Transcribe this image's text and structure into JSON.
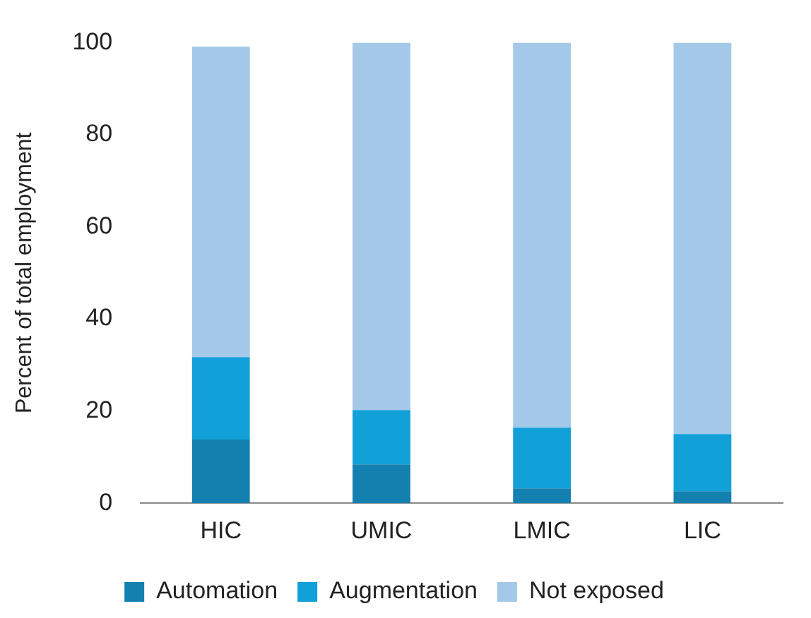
{
  "chart_data": {
    "type": "bar",
    "stacked": true,
    "ylabel": "Percent of total employment",
    "categories": [
      "HIC",
      "UMIC",
      "LMIC",
      "LIC"
    ],
    "series": [
      {
        "name": "Automation",
        "color": "#1380b0",
        "values": [
          13.8,
          8.4,
          3.2,
          2.6
        ]
      },
      {
        "name": "Augmentation",
        "color": "#12a0d8",
        "values": [
          17.9,
          11.8,
          13.2,
          12.4
        ]
      },
      {
        "name": "Not exposed",
        "color": "#a3c8e8",
        "values": [
          67.4,
          79.8,
          83.6,
          85.0
        ]
      }
    ],
    "ylim": [
      0,
      100
    ],
    "yticks": [
      0,
      20,
      40,
      60,
      80,
      100
    ],
    "grid": false,
    "legend": "bottom"
  }
}
